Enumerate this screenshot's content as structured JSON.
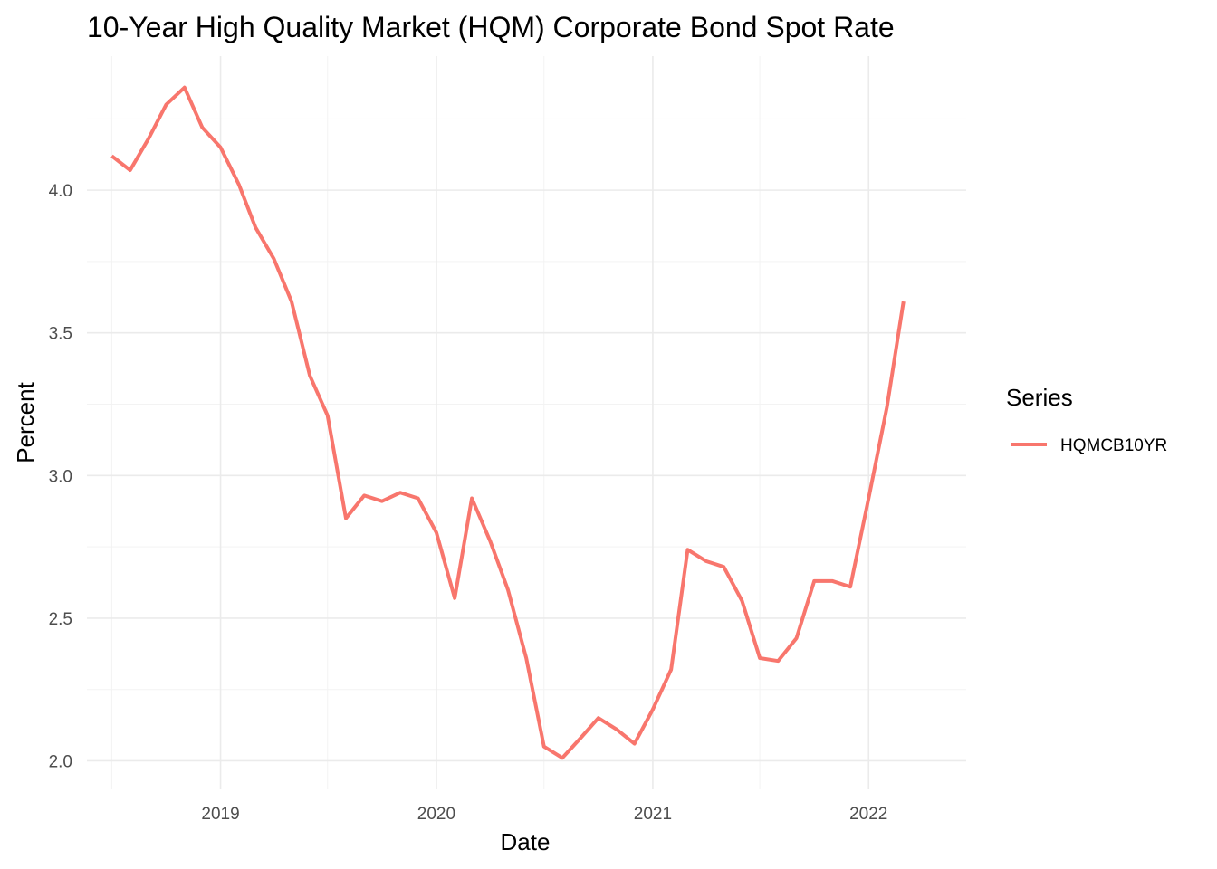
{
  "chart_data": {
    "type": "line",
    "title": "10-Year High Quality Market (HQM) Corporate Bond Spot Rate",
    "xlabel": "Date",
    "ylabel": "Percent",
    "x_ticks": [
      "2019",
      "2020",
      "2021",
      "2022"
    ],
    "y_ticks": [
      "2.0",
      "2.5",
      "3.0",
      "3.5",
      "4.0"
    ],
    "xlim": [
      "2018-05-20",
      "2022-06-15"
    ],
    "ylim": [
      1.9,
      4.47
    ],
    "grid": true,
    "legend": {
      "title": "Series",
      "position": "right"
    },
    "series": [
      {
        "name": "HQMCB10YR",
        "color": "#F8766D",
        "points": [
          [
            "2018-07-01",
            4.12
          ],
          [
            "2018-08-01",
            4.07
          ],
          [
            "2018-09-01",
            4.18
          ],
          [
            "2018-10-01",
            4.3
          ],
          [
            "2018-11-01",
            4.36
          ],
          [
            "2018-12-01",
            4.22
          ],
          [
            "2019-01-01",
            4.15
          ],
          [
            "2019-02-01",
            4.02
          ],
          [
            "2019-03-01",
            3.87
          ],
          [
            "2019-04-01",
            3.76
          ],
          [
            "2019-05-01",
            3.61
          ],
          [
            "2019-06-01",
            3.35
          ],
          [
            "2019-07-01",
            3.21
          ],
          [
            "2019-08-01",
            2.85
          ],
          [
            "2019-09-01",
            2.93
          ],
          [
            "2019-10-01",
            2.91
          ],
          [
            "2019-11-01",
            2.94
          ],
          [
            "2019-12-01",
            2.92
          ],
          [
            "2020-01-01",
            2.8
          ],
          [
            "2020-02-01",
            2.57
          ],
          [
            "2020-03-01",
            2.92
          ],
          [
            "2020-04-01",
            2.77
          ],
          [
            "2020-05-01",
            2.6
          ],
          [
            "2020-06-01",
            2.36
          ],
          [
            "2020-07-01",
            2.05
          ],
          [
            "2020-08-01",
            2.01
          ],
          [
            "2020-09-01",
            2.08
          ],
          [
            "2020-10-01",
            2.15
          ],
          [
            "2020-11-01",
            2.11
          ],
          [
            "2020-12-01",
            2.06
          ],
          [
            "2021-01-01",
            2.18
          ],
          [
            "2021-02-01",
            2.32
          ],
          [
            "2021-03-01",
            2.74
          ],
          [
            "2021-04-01",
            2.7
          ],
          [
            "2021-05-01",
            2.68
          ],
          [
            "2021-06-01",
            2.56
          ],
          [
            "2021-07-01",
            2.36
          ],
          [
            "2021-08-01",
            2.35
          ],
          [
            "2021-09-01",
            2.43
          ],
          [
            "2021-10-01",
            2.63
          ],
          [
            "2021-11-01",
            2.63
          ],
          [
            "2021-12-01",
            2.61
          ],
          [
            "2022-01-01",
            2.92
          ],
          [
            "2022-02-01",
            3.24
          ],
          [
            "2022-03-01",
            3.61
          ]
        ]
      }
    ]
  }
}
